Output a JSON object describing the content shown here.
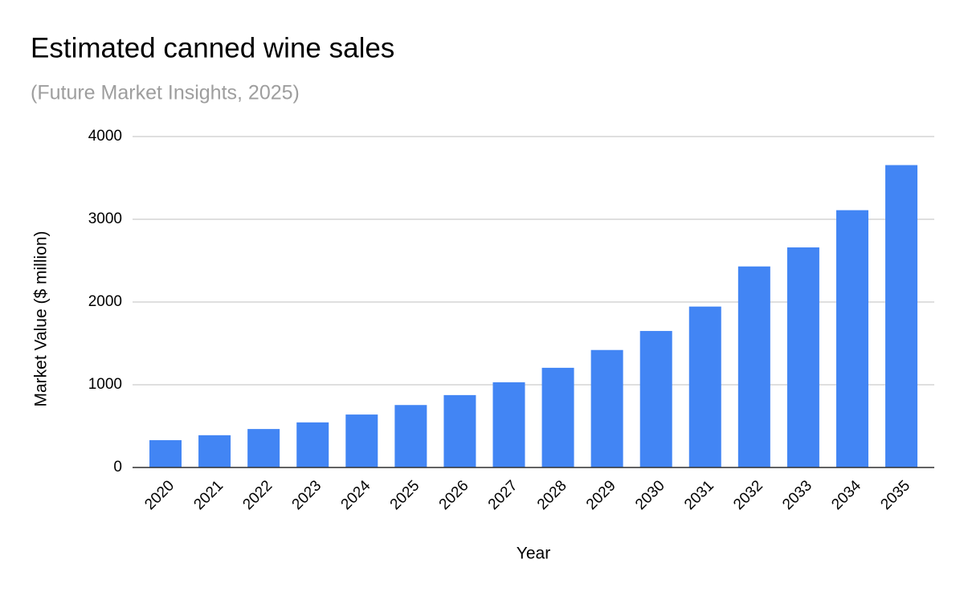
{
  "chart_data": {
    "type": "bar",
    "title": "Estimated canned wine sales",
    "subtitle": "(Future Market Insights, 2025)",
    "x_label": "Year",
    "y_label": "Market Value ($ million)",
    "categories": [
      "2020",
      "2021",
      "2022",
      "2023",
      "2024",
      "2025",
      "2026",
      "2027",
      "2028",
      "2029",
      "2030",
      "2031",
      "2032",
      "2033",
      "2034",
      "2035"
    ],
    "values": [
      330,
      390,
      465,
      545,
      640,
      755,
      875,
      1030,
      1205,
      1420,
      1650,
      1945,
      2430,
      2660,
      3110,
      3655
    ],
    "color": "#4285f4",
    "ylim": [
      0,
      4000
    ],
    "yticks": [
      0,
      1000,
      2000,
      3000,
      4000
    ],
    "grid": true
  }
}
